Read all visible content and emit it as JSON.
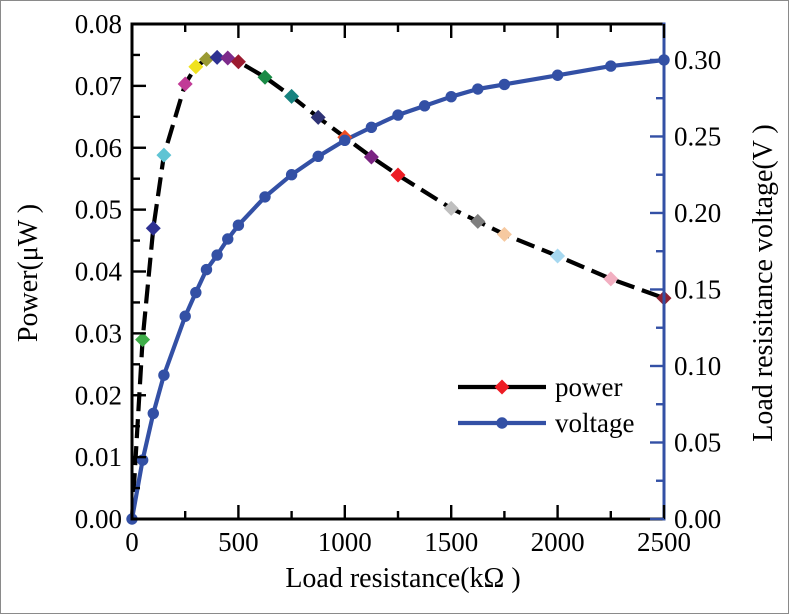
{
  "figure": {
    "background": "#ffffff",
    "border_color": "#8a8a8a"
  },
  "chart_data": {
    "type": "line",
    "title": "",
    "xlabel": "Load resistance(kΩ )",
    "ylabel_left": "Power(μW )",
    "ylabel_right": "Load resisitance voltage(V )",
    "grid": false,
    "x_range": [
      0,
      2500
    ],
    "y_left_range": [
      0,
      0.08
    ],
    "y_right_range": [
      0,
      0.3235
    ],
    "x_ticks": {
      "values": [
        0,
        500,
        1000,
        1500,
        2000,
        2500
      ],
      "labels": [
        "0",
        "500",
        "1000",
        "1500",
        "2000",
        "2500"
      ],
      "minor_values": [
        250,
        750,
        1250,
        1750,
        2250
      ]
    },
    "y_left_ticks": {
      "values": [
        0,
        0.01,
        0.02,
        0.03,
        0.04,
        0.05,
        0.06,
        0.07,
        0.08
      ],
      "labels": [
        "0.00",
        "0.01",
        "0.02",
        "0.03",
        "0.04",
        "0.05",
        "0.06",
        "0.07",
        "0.08"
      ],
      "minor_values": [
        0.005,
        0.015,
        0.025,
        0.035,
        0.045,
        0.055,
        0.065,
        0.075
      ]
    },
    "y_right_ticks": {
      "values": [
        0,
        0.05,
        0.1,
        0.15,
        0.2,
        0.25,
        0.3
      ],
      "labels": [
        "0.00",
        "0.05",
        "0.10",
        "0.15",
        "0.20",
        "0.25",
        "0.30"
      ],
      "minor_values": [
        0.025,
        0.075,
        0.125,
        0.175,
        0.225,
        0.275
      ]
    },
    "axis_colors": {
      "left": "#000000",
      "bottom": "#000000",
      "top": "#000000",
      "right": "#3350a5"
    },
    "legend": {
      "position": "center-right",
      "entries": [
        {
          "label": "power",
          "line_color": "#000000",
          "marker": "diamond",
          "marker_color": "#ed1c24"
        },
        {
          "label": "voltage",
          "line_color": "#3350a5",
          "marker": "circle",
          "marker_color": "#3350a5"
        }
      ]
    },
    "series": [
      {
        "name": "power",
        "axis": "left",
        "unit": "μW",
        "line_color": "#000000",
        "line_style": "dashed",
        "marker": "diamond",
        "x": [
          0,
          50,
          100,
          150,
          250,
          300,
          350,
          400,
          450,
          500,
          625,
          750,
          875,
          1000,
          1125,
          1250,
          1500,
          1625,
          1750,
          2000,
          2250,
          2500
        ],
        "y": [
          0,
          0.029,
          0.047,
          0.0588,
          0.0703,
          0.0731,
          0.0743,
          0.0746,
          0.0745,
          0.0739,
          0.0714,
          0.0683,
          0.0649,
          0.0617,
          0.0585,
          0.0556,
          0.0502,
          0.0481,
          0.046,
          0.0425,
          0.0388,
          0.0357
        ],
        "marker_colors": [
          null,
          "#3fae49",
          "#2e3192",
          "#5fc4d4",
          "#c13b97",
          "#f0e21e",
          "#9a9a33",
          "#2e3192",
          "#7d2b8b",
          "#9b1b30",
          "#1a8a45",
          "#17827f",
          "#2f3376",
          "#ef4e23",
          "#7a2482",
          "#ed1c24",
          "#bfbfbf",
          "#7f7f7f",
          "#f6c9a0",
          "#a6d8f0",
          "#f2afc1",
          "#8e2233"
        ]
      },
      {
        "name": "voltage",
        "axis": "right",
        "unit": "V",
        "line_color": "#3350a5",
        "line_style": "solid",
        "marker": "circle",
        "marker_color": "#3350a5",
        "x": [
          0,
          50,
          100,
          150,
          250,
          300,
          350,
          400,
          450,
          500,
          625,
          750,
          875,
          1000,
          1125,
          1250,
          1375,
          1500,
          1625,
          1750,
          2000,
          2250,
          2500
        ],
        "y": [
          0,
          0.0385,
          0.069,
          0.094,
          0.1325,
          0.148,
          0.163,
          0.1725,
          0.183,
          0.192,
          0.2105,
          0.225,
          0.237,
          0.2475,
          0.256,
          0.264,
          0.27,
          0.276,
          0.281,
          0.284,
          0.29,
          0.296,
          0.3
        ]
      }
    ]
  }
}
